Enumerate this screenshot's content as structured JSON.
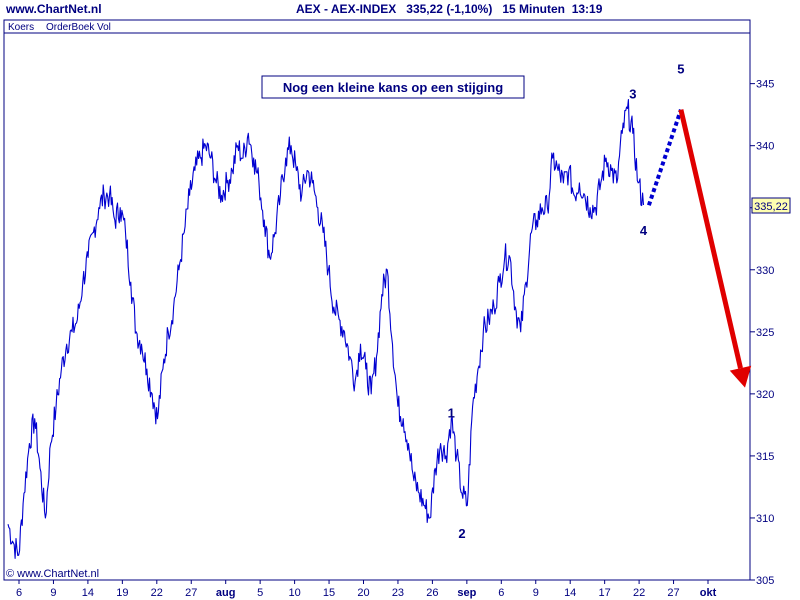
{
  "header": {
    "site": "www.ChartNet.nl",
    "symbol": "AEX - AEX-INDEX",
    "last": "335,22",
    "change": "(-1,10%)",
    "interval": "15 Minuten",
    "time": "13:19"
  },
  "tabs": [
    "Koers",
    "OrderBoek",
    "Vol"
  ],
  "copyright": "© www.ChartNet.nl",
  "colors": {
    "line": "#0000d0",
    "axis": "#000080",
    "forecast_dotted": "#0000d0",
    "forecast_arrow": "#e00000",
    "background": "#ffffff"
  },
  "chart_data": {
    "type": "line",
    "title": "Nog een kleine kans op een stijging",
    "xlabel": "",
    "ylabel": "",
    "ylim": [
      305,
      349
    ],
    "yticks": [
      305,
      310,
      315,
      320,
      325,
      330,
      335,
      340,
      345
    ],
    "ytick_labels": [
      "305",
      "310",
      "315",
      "320",
      "325",
      "330",
      "335",
      "340",
      "345"
    ],
    "last_value_label": "335,22",
    "x_tick_labels": [
      "6",
      "9",
      "14",
      "19",
      "22",
      "27",
      "aug",
      "5",
      "10",
      "15",
      "20",
      "23",
      "26",
      "sep",
      "6",
      "9",
      "14",
      "17",
      "22",
      "27",
      "okt"
    ],
    "x_tick_months": [
      false,
      false,
      false,
      false,
      false,
      false,
      true,
      false,
      false,
      false,
      false,
      false,
      false,
      true,
      false,
      false,
      false,
      false,
      false,
      false,
      true
    ],
    "grid": false,
    "series": [
      {
        "values": [
          309.5,
          308,
          307,
          312,
          316,
          318,
          314,
          310,
          316,
          319,
          322,
          324,
          325,
          326,
          329,
          331,
          333,
          335,
          336,
          336,
          334,
          335,
          333,
          329,
          325,
          324,
          322,
          320,
          318,
          322,
          325,
          327,
          330,
          333,
          336,
          338,
          339,
          340,
          339,
          337,
          336,
          337,
          338,
          340,
          339,
          341,
          339,
          337,
          334,
          331,
          333,
          336,
          339,
          340,
          338,
          336,
          338,
          337,
          335,
          333,
          330,
          327,
          326,
          325,
          323,
          321,
          324,
          322,
          320,
          323,
          328,
          330,
          324,
          319,
          318,
          316,
          313,
          312,
          311,
          310,
          314,
          316,
          315,
          318,
          315,
          312,
          311,
          319,
          322,
          325,
          326,
          327,
          329,
          331,
          331,
          327,
          325,
          329,
          333,
          334,
          335,
          335,
          339,
          338,
          337,
          338,
          336,
          337,
          336,
          335,
          335,
          337,
          339,
          338,
          337,
          341,
          343,
          341,
          337,
          335.22
        ]
      }
    ],
    "annotations": [
      {
        "label": "1",
        "x_index": 83,
        "value": 318.5
      },
      {
        "label": "2",
        "x_index": 85,
        "value": 308.8
      },
      {
        "label": "3",
        "x_index": 117,
        "value": 344.2
      },
      {
        "label": "4",
        "x_index": 119,
        "value": 333.2
      },
      {
        "label": "5",
        "x_index": 126,
        "value": 346.2
      }
    ],
    "forecast_dotted": {
      "from": {
        "x_index": 120,
        "value": 335.2
      },
      "to": {
        "x_index": 126,
        "value": 342.9
      }
    },
    "forecast_arrow": {
      "from": {
        "x_index": 126,
        "value": 342.9
      },
      "to": {
        "x_index": 138,
        "value": 320.5
      }
    }
  }
}
